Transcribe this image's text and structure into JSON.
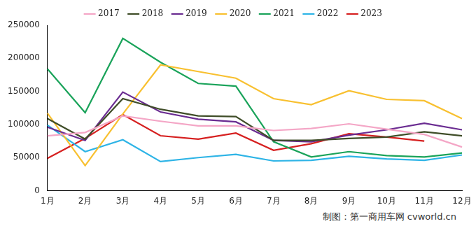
{
  "chart_data": {
    "type": "line",
    "categories": [
      "1月",
      "2月",
      "3月",
      "4月",
      "5月",
      "6月",
      "7月",
      "8月",
      "9月",
      "10月",
      "11月",
      "12月"
    ],
    "series": [
      {
        "name": "2017",
        "color": "#f4a6c6",
        "values": [
          83000,
          88000,
          113000,
          105000,
          98000,
          98000,
          91000,
          94000,
          101000,
          93000,
          85000,
          66000
        ]
      },
      {
        "name": "2018",
        "color": "#3f4d28",
        "values": [
          109000,
          78000,
          139000,
          123000,
          113000,
          112000,
          76000,
          76000,
          79000,
          81000,
          89000,
          83000
        ]
      },
      {
        "name": "2019",
        "color": "#6a2c91",
        "values": [
          96000,
          76000,
          149000,
          119000,
          108000,
          104000,
          76000,
          74000,
          84000,
          92000,
          102000,
          92000
        ]
      },
      {
        "name": "2020",
        "color": "#f8c030",
        "values": [
          117000,
          38000,
          116000,
          190000,
          180000,
          170000,
          139000,
          130000,
          151000,
          138000,
          136000,
          109000
        ]
      },
      {
        "name": "2021",
        "color": "#1aa35a",
        "values": [
          184000,
          118000,
          230000,
          194000,
          162000,
          158000,
          74000,
          51000,
          59000,
          53000,
          51000,
          57000
        ]
      },
      {
        "name": "2022",
        "color": "#2eb4e6",
        "values": [
          99000,
          59000,
          77000,
          44000,
          50000,
          55000,
          45000,
          46000,
          52000,
          48000,
          46000,
          54000
        ]
      },
      {
        "name": "2023",
        "color": "#d62020",
        "values": [
          49000,
          79000,
          115000,
          83000,
          78000,
          87000,
          61000,
          71000,
          86000,
          81000,
          75000,
          null
        ]
      }
    ],
    "ylim": [
      0,
      250000
    ],
    "yticks": [
      0,
      50000,
      100000,
      150000,
      200000,
      250000
    ],
    "grid": false,
    "legend": "top",
    "source": "制图：第一商用车网 cvworld.cn"
  }
}
